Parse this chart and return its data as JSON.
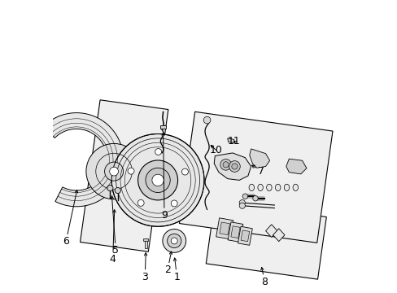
{
  "bg_color": "#ffffff",
  "figsize": [
    4.89,
    3.6
  ],
  "dpi": 100,
  "line_color": "#000000",
  "text_color": "#000000",
  "font_size": 9
}
